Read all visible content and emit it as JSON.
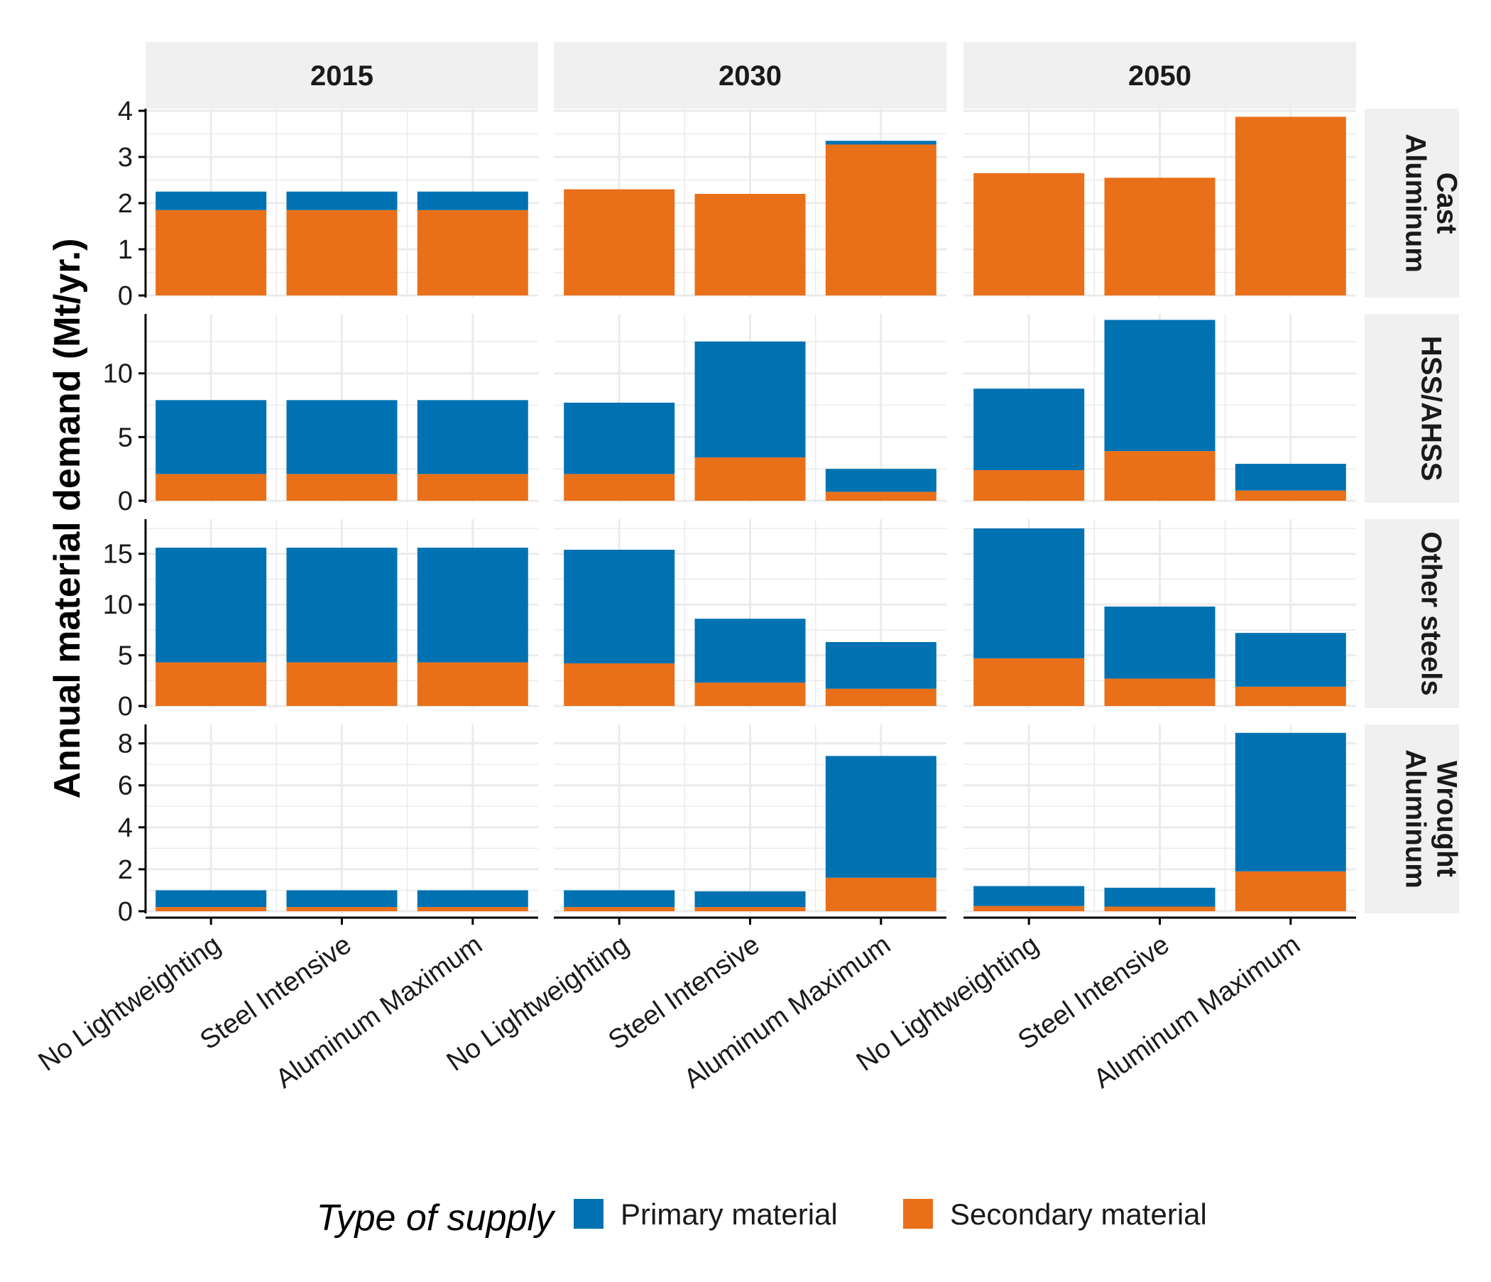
{
  "chart_data": {
    "type": "bar",
    "stacked": true,
    "facet_columns": [
      "2015",
      "2030",
      "2050"
    ],
    "facet_rows": [
      {
        "label_lines": [
          "Cast",
          "Aluminum"
        ],
        "ylim": [
          0,
          4
        ],
        "yticks": [
          0,
          1,
          2,
          3,
          4
        ]
      },
      {
        "label_lines": [
          "HSS/AHSS"
        ],
        "ylim": [
          0,
          14.5
        ],
        "yticks": [
          0,
          5,
          10
        ]
      },
      {
        "label_lines": [
          "Other steels"
        ],
        "ylim": [
          0,
          18.2
        ],
        "yticks": [
          0,
          5,
          10,
          15
        ]
      },
      {
        "label_lines": [
          "Wrought",
          "Aluminum"
        ],
        "ylim": [
          0,
          8.8
        ],
        "yticks": [
          0,
          2,
          4,
          6,
          8
        ]
      }
    ],
    "categories": [
      "No Lightweighting",
      "Steel Intensive",
      "Aluminum Maximum"
    ],
    "ylabel": "Annual material demand (Mt/yr.)",
    "xlabel": "",
    "grid": true,
    "legend": {
      "title": "Type of supply",
      "position": "bottom",
      "entries": [
        {
          "key": "primary",
          "label": "Primary material",
          "color": "#0072B2"
        },
        {
          "key": "secondary",
          "label": "Secondary material",
          "color": "#E97019"
        }
      ]
    },
    "panels": [
      [
        {
          "primary": [
            0.4,
            0.4,
            0.4
          ],
          "secondary": [
            1.85,
            1.85,
            1.85
          ]
        },
        {
          "primary": [
            0.0,
            0.0,
            0.08
          ],
          "secondary": [
            2.3,
            2.2,
            3.27
          ]
        },
        {
          "primary": [
            0.0,
            0.0,
            0.0
          ],
          "secondary": [
            2.65,
            2.55,
            3.87
          ]
        }
      ],
      [
        {
          "primary": [
            5.8,
            5.8,
            5.8
          ],
          "secondary": [
            2.1,
            2.1,
            2.1
          ]
        },
        {
          "primary": [
            5.6,
            9.1,
            1.8
          ],
          "secondary": [
            2.1,
            3.4,
            0.7
          ]
        },
        {
          "primary": [
            6.4,
            10.3,
            2.1
          ],
          "secondary": [
            2.4,
            3.9,
            0.8
          ]
        }
      ],
      [
        {
          "primary": [
            11.3,
            11.3,
            11.3
          ],
          "secondary": [
            4.3,
            4.3,
            4.3
          ]
        },
        {
          "primary": [
            11.2,
            6.3,
            4.6
          ],
          "secondary": [
            4.2,
            2.3,
            1.7
          ]
        },
        {
          "primary": [
            12.8,
            7.1,
            5.3
          ],
          "secondary": [
            4.7,
            2.7,
            1.9
          ]
        }
      ],
      [
        {
          "primary": [
            0.8,
            0.8,
            0.8
          ],
          "secondary": [
            0.2,
            0.2,
            0.2
          ]
        },
        {
          "primary": [
            0.8,
            0.75,
            5.8
          ],
          "secondary": [
            0.2,
            0.2,
            1.6
          ]
        },
        {
          "primary": [
            0.95,
            0.9,
            6.6
          ],
          "secondary": [
            0.25,
            0.22,
            1.9
          ]
        }
      ]
    ]
  }
}
